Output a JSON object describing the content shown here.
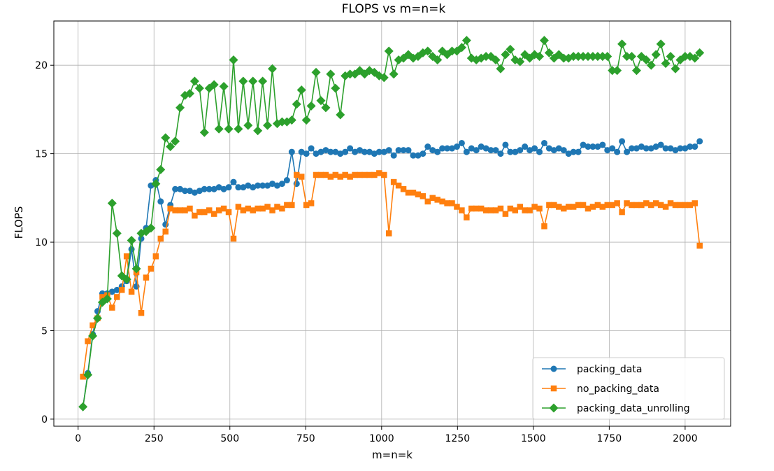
{
  "chart_data": {
    "type": "line",
    "title": "FLOPS vs m=n=k",
    "xlabel": "m=n=k",
    "ylabel": "FLOPS",
    "xlim": [
      -80,
      2150
    ],
    "ylim": [
      -0.4,
      22.5
    ],
    "xticks": [
      0,
      250,
      500,
      750,
      1000,
      1250,
      1500,
      1750,
      2000
    ],
    "yticks": [
      0,
      5,
      10,
      15,
      20
    ],
    "grid": true,
    "legend_position": "lower-right",
    "series": [
      {
        "name": "packing_data",
        "color": "#1f77b4",
        "marker": "circle",
        "x": [
          16,
          32,
          48,
          64,
          80,
          96,
          112,
          128,
          144,
          160,
          176,
          192,
          208,
          224,
          240,
          256,
          272,
          288,
          304,
          320,
          336,
          352,
          368,
          384,
          400,
          416,
          432,
          448,
          464,
          480,
          496,
          512,
          528,
          544,
          560,
          576,
          592,
          608,
          624,
          640,
          656,
          672,
          688,
          704,
          720,
          736,
          752,
          768,
          784,
          800,
          816,
          832,
          848,
          864,
          880,
          896,
          912,
          928,
          944,
          960,
          976,
          992,
          1008,
          1024,
          1040,
          1056,
          1072,
          1088,
          1104,
          1120,
          1136,
          1152,
          1168,
          1184,
          1200,
          1216,
          1232,
          1248,
          1264,
          1280,
          1296,
          1312,
          1328,
          1344,
          1360,
          1376,
          1392,
          1408,
          1424,
          1440,
          1456,
          1472,
          1488,
          1504,
          1520,
          1536,
          1552,
          1568,
          1584,
          1600,
          1616,
          1632,
          1648,
          1664,
          1680,
          1696,
          1712,
          1728,
          1744,
          1760,
          1776,
          1792,
          1808,
          1824,
          1840,
          1856,
          1872,
          1888,
          1904,
          1920,
          1936,
          1952,
          1968,
          1984,
          2000,
          2016,
          2032,
          2048
        ],
        "y": [
          0.7,
          2.6,
          4.8,
          6.1,
          7.1,
          7.1,
          7.2,
          7.3,
          7.5,
          7.8,
          9.6,
          7.5,
          10.2,
          10.8,
          13.2,
          13.5,
          12.3,
          11.0,
          12.1,
          13.0,
          13.0,
          12.9,
          12.9,
          12.8,
          12.9,
          13.0,
          13.0,
          13.0,
          13.1,
          13.0,
          13.1,
          13.4,
          13.1,
          13.1,
          13.2,
          13.1,
          13.2,
          13.2,
          13.2,
          13.3,
          13.2,
          13.3,
          13.5,
          15.1,
          13.3,
          15.1,
          15.0,
          15.3,
          15.0,
          15.1,
          15.2,
          15.1,
          15.1,
          15.0,
          15.1,
          15.3,
          15.1,
          15.2,
          15.1,
          15.1,
          15.0,
          15.1,
          15.1,
          15.2,
          14.9,
          15.2,
          15.2,
          15.2,
          14.9,
          14.9,
          15.0,
          15.4,
          15.2,
          15.1,
          15.3,
          15.3,
          15.3,
          15.4,
          15.6,
          15.1,
          15.3,
          15.2,
          15.4,
          15.3,
          15.2,
          15.2,
          15.0,
          15.5,
          15.1,
          15.1,
          15.2,
          15.4,
          15.2,
          15.3,
          15.1,
          15.6,
          15.3,
          15.2,
          15.3,
          15.2,
          15.0,
          15.1,
          15.1,
          15.5,
          15.4,
          15.4,
          15.4,
          15.5,
          15.2,
          15.3,
          15.1,
          15.7,
          15.1,
          15.3,
          15.3,
          15.4,
          15.3,
          15.3,
          15.4,
          15.5,
          15.3,
          15.3,
          15.2,
          15.3,
          15.3,
          15.4,
          15.4,
          15.7
        ]
      },
      {
        "name": "no_packing_data",
        "color": "#ff7f0e",
        "marker": "square",
        "x": [
          16,
          32,
          48,
          64,
          80,
          96,
          112,
          128,
          144,
          160,
          176,
          192,
          208,
          224,
          240,
          256,
          272,
          288,
          304,
          320,
          336,
          352,
          368,
          384,
          400,
          416,
          432,
          448,
          464,
          480,
          496,
          512,
          528,
          544,
          560,
          576,
          592,
          608,
          624,
          640,
          656,
          672,
          688,
          704,
          720,
          736,
          752,
          768,
          784,
          800,
          816,
          832,
          848,
          864,
          880,
          896,
          912,
          928,
          944,
          960,
          976,
          992,
          1008,
          1024,
          1040,
          1056,
          1072,
          1088,
          1104,
          1120,
          1136,
          1152,
          1168,
          1184,
          1200,
          1216,
          1232,
          1248,
          1264,
          1280,
          1296,
          1312,
          1328,
          1344,
          1360,
          1376,
          1392,
          1408,
          1424,
          1440,
          1456,
          1472,
          1488,
          1504,
          1520,
          1536,
          1552,
          1568,
          1584,
          1600,
          1616,
          1632,
          1648,
          1664,
          1680,
          1696,
          1712,
          1728,
          1744,
          1760,
          1776,
          1792,
          1808,
          1824,
          1840,
          1856,
          1872,
          1888,
          1904,
          1920,
          1936,
          1952,
          1968,
          1984,
          2000,
          2016,
          2032,
          2048
        ],
        "y": [
          2.4,
          4.4,
          5.3,
          5.7,
          6.9,
          7.0,
          6.3,
          6.9,
          7.3,
          9.2,
          7.2,
          8.3,
          6.0,
          8.0,
          8.5,
          9.2,
          10.2,
          10.6,
          11.9,
          11.8,
          11.8,
          11.8,
          11.9,
          11.5,
          11.7,
          11.7,
          11.8,
          11.6,
          11.8,
          11.9,
          11.7,
          10.2,
          12.0,
          11.8,
          11.9,
          11.8,
          11.9,
          11.9,
          12.0,
          11.8,
          12.0,
          11.9,
          12.1,
          12.1,
          13.8,
          13.7,
          12.1,
          12.2,
          13.8,
          13.8,
          13.8,
          13.7,
          13.8,
          13.7,
          13.8,
          13.7,
          13.8,
          13.8,
          13.8,
          13.8,
          13.8,
          13.9,
          13.8,
          10.5,
          13.4,
          13.2,
          13.0,
          12.8,
          12.8,
          12.7,
          12.6,
          12.3,
          12.5,
          12.4,
          12.3,
          12.2,
          12.2,
          12.0,
          11.8,
          11.4,
          11.9,
          11.9,
          11.9,
          11.8,
          11.8,
          11.8,
          11.9,
          11.6,
          11.9,
          11.8,
          12.0,
          11.8,
          11.8,
          12.0,
          11.9,
          10.9,
          12.1,
          12.1,
          12.0,
          11.9,
          12.0,
          12.0,
          12.1,
          12.1,
          11.9,
          12.0,
          12.1,
          12.0,
          12.1,
          12.1,
          12.2,
          11.7,
          12.2,
          12.1,
          12.1,
          12.1,
          12.2,
          12.1,
          12.2,
          12.1,
          12.0,
          12.2,
          12.1,
          12.1,
          12.1,
          12.1,
          12.2,
          9.8
        ]
      },
      {
        "name": "packing_data_unrolling",
        "color": "#2ca02c",
        "marker": "diamond",
        "x": [
          16,
          32,
          48,
          64,
          80,
          96,
          112,
          128,
          144,
          160,
          176,
          192,
          208,
          224,
          240,
          256,
          272,
          288,
          304,
          320,
          336,
          352,
          368,
          384,
          400,
          416,
          432,
          448,
          464,
          480,
          496,
          512,
          528,
          544,
          560,
          576,
          592,
          608,
          624,
          640,
          656,
          672,
          688,
          704,
          720,
          736,
          752,
          768,
          784,
          800,
          816,
          832,
          848,
          864,
          880,
          896,
          912,
          928,
          944,
          960,
          976,
          992,
          1008,
          1024,
          1040,
          1056,
          1072,
          1088,
          1104,
          1120,
          1136,
          1152,
          1168,
          1184,
          1200,
          1216,
          1232,
          1248,
          1264,
          1280,
          1296,
          1312,
          1328,
          1344,
          1360,
          1376,
          1392,
          1408,
          1424,
          1440,
          1456,
          1472,
          1488,
          1504,
          1520,
          1536,
          1552,
          1568,
          1584,
          1600,
          1616,
          1632,
          1648,
          1664,
          1680,
          1696,
          1712,
          1728,
          1744,
          1760,
          1776,
          1792,
          1808,
          1824,
          1840,
          1856,
          1872,
          1888,
          1904,
          1920,
          1936,
          1952,
          1968,
          1984,
          2000,
          2016,
          2032,
          2048
        ],
        "y": [
          0.7,
          2.5,
          4.7,
          5.7,
          6.6,
          6.8,
          12.2,
          10.5,
          8.1,
          7.9,
          10.1,
          8.5,
          10.5,
          10.6,
          10.8,
          13.3,
          14.1,
          15.9,
          15.4,
          15.7,
          17.6,
          18.3,
          18.4,
          19.1,
          18.7,
          16.2,
          18.7,
          18.9,
          16.4,
          18.8,
          16.4,
          20.3,
          16.4,
          19.1,
          16.6,
          19.1,
          16.3,
          19.1,
          16.6,
          19.8,
          16.7,
          16.8,
          16.8,
          16.9,
          17.8,
          18.6,
          16.9,
          17.7,
          19.6,
          18.0,
          17.6,
          19.5,
          18.7,
          17.2,
          19.4,
          19.5,
          19.5,
          19.7,
          19.5,
          19.7,
          19.6,
          19.4,
          19.3,
          20.8,
          19.5,
          20.3,
          20.4,
          20.6,
          20.4,
          20.5,
          20.7,
          20.8,
          20.5,
          20.3,
          20.8,
          20.6,
          20.8,
          20.8,
          21.0,
          21.4,
          20.4,
          20.3,
          20.4,
          20.5,
          20.5,
          20.3,
          19.8,
          20.6,
          20.9,
          20.3,
          20.2,
          20.6,
          20.4,
          20.6,
          20.5,
          21.4,
          20.7,
          20.4,
          20.6,
          20.4,
          20.4,
          20.5,
          20.5,
          20.5,
          20.5,
          20.5,
          20.5,
          20.5,
          20.5,
          19.7,
          19.7,
          21.2,
          20.5,
          20.5,
          19.7,
          20.5,
          20.3,
          20.0,
          20.6,
          21.2,
          20.1,
          20.5,
          19.8,
          20.3,
          20.5,
          20.5,
          20.4,
          20.7
        ]
      }
    ]
  }
}
